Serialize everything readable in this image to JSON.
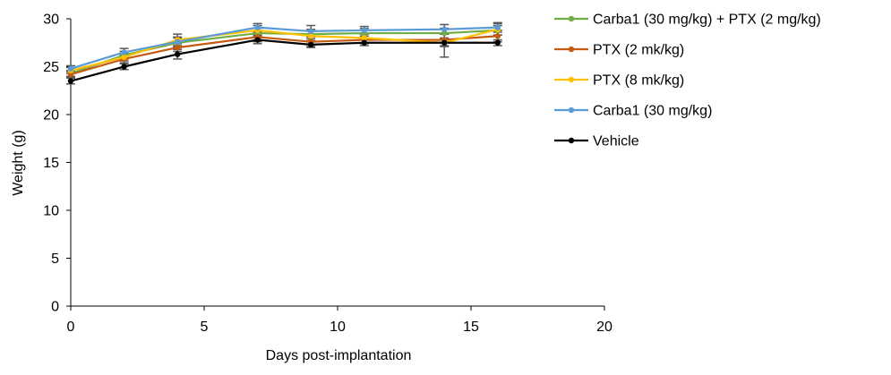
{
  "chart_data": {
    "type": "line",
    "title": "",
    "xlabel": "Days post-implantation",
    "ylabel": "Weight (g)",
    "xlim": [
      0,
      20
    ],
    "ylim": [
      0,
      30
    ],
    "xticks": [
      0,
      5,
      10,
      15,
      20
    ],
    "yticks": [
      0,
      5,
      10,
      15,
      20,
      25,
      30
    ],
    "grid": false,
    "legend_position": "right",
    "x": [
      0,
      2,
      4,
      7,
      9,
      11,
      14,
      16
    ],
    "series": [
      {
        "name": "Carba1 (30 mg/kg) + PTX (2 mg/kg)",
        "color": "#70ad47",
        "values": [
          24.3,
          26.2,
          27.5,
          28.5,
          28.4,
          28.5,
          28.5,
          28.8
        ],
        "errors": [
          0.3,
          0.4,
          0.5,
          0.5,
          0.5,
          0.5,
          0.5,
          0.5
        ]
      },
      {
        "name": "PTX (2 mk/kg)",
        "color": "#c55a11",
        "values": [
          24.2,
          25.8,
          27.0,
          28.1,
          27.6,
          27.8,
          27.8,
          28.2
        ],
        "errors": [
          0.3,
          0.4,
          0.4,
          0.5,
          0.5,
          0.4,
          0.6,
          0.6
        ]
      },
      {
        "name": "PTX (8 mk/kg)",
        "color": "#ffc000",
        "values": [
          24.6,
          26.0,
          27.8,
          28.8,
          28.2,
          28.0,
          27.5,
          28.9
        ],
        "errors": [
          0.3,
          0.4,
          0.6,
          0.5,
          0.5,
          0.5,
          1.5,
          0.6
        ]
      },
      {
        "name": "Carba1 (30 mg/kg)",
        "color": "#5b9bd5",
        "values": [
          24.8,
          26.5,
          27.6,
          29.1,
          28.7,
          28.8,
          28.9,
          29.1
        ],
        "errors": [
          0.3,
          0.4,
          0.5,
          0.4,
          0.6,
          0.4,
          0.5,
          0.5
        ]
      },
      {
        "name": "Vehicle",
        "color": "#000000",
        "values": [
          23.5,
          25.0,
          26.3,
          27.8,
          27.3,
          27.5,
          27.5,
          27.5
        ],
        "errors": [
          0.3,
          0.3,
          0.5,
          0.4,
          0.3,
          0.3,
          0.4,
          0.3
        ]
      }
    ]
  }
}
